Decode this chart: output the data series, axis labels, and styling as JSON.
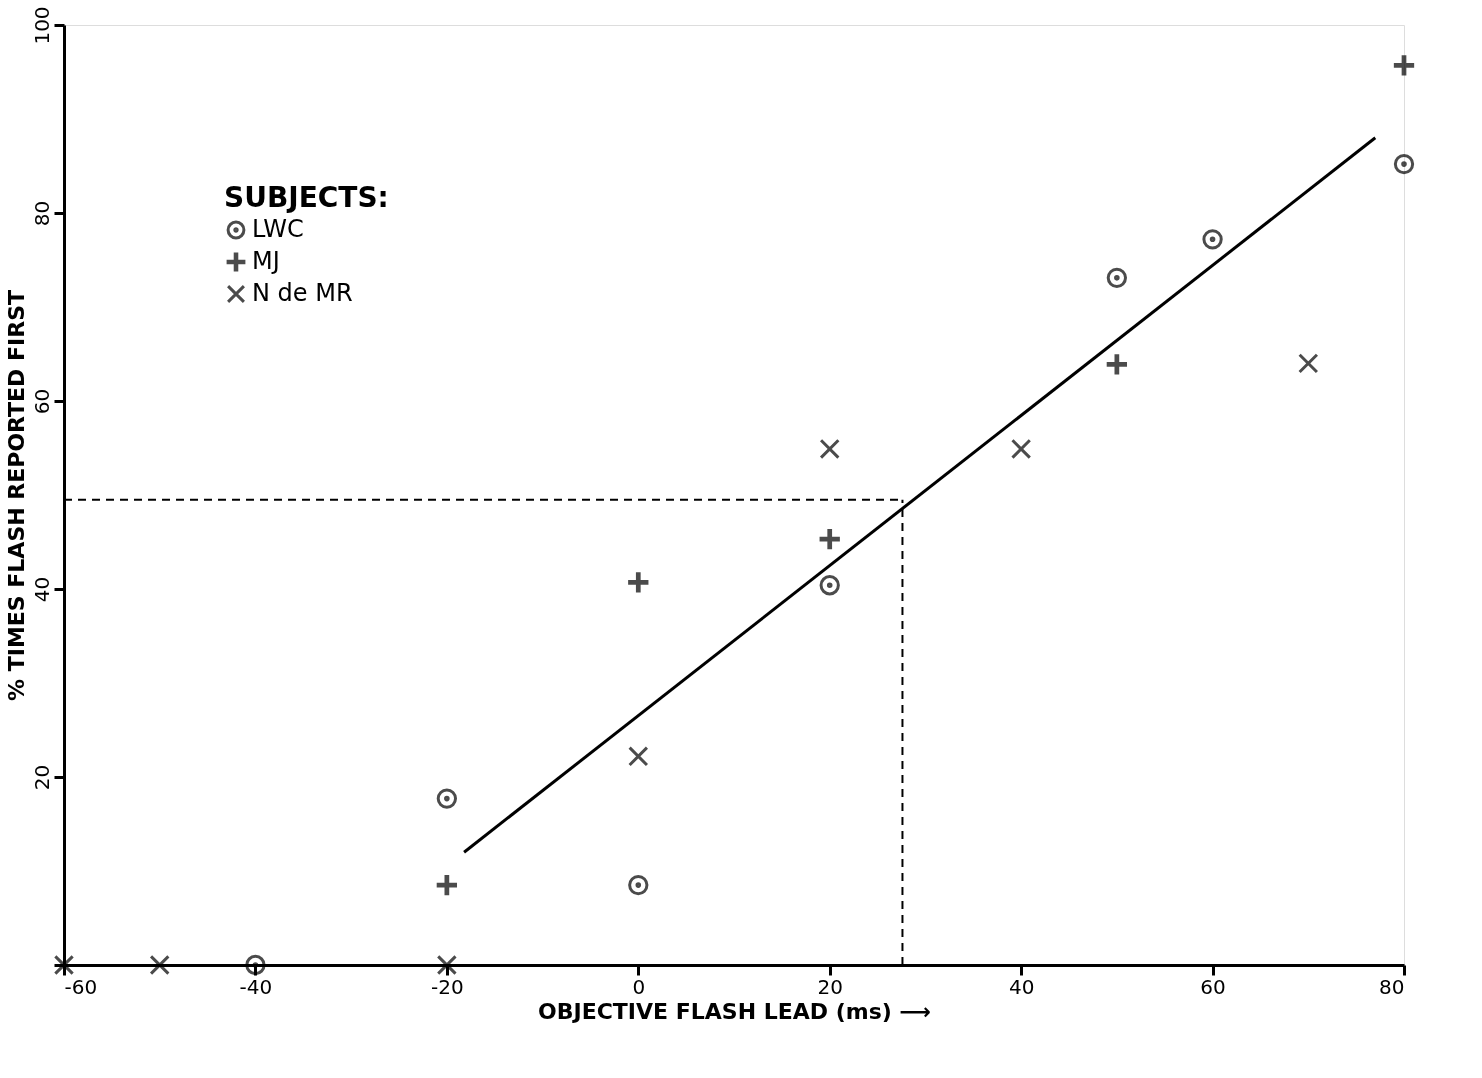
{
  "chart_data": {
    "type": "scatter",
    "xlabel": "OBJECTIVE FLASH LEAD (ms) ⟶",
    "ylabel": "% TIMES FLASH REPORTED FIRST",
    "legend_title": "SUBJECTS:",
    "legend": "top left",
    "grid": false,
    "xlim": [
      -60,
      80
    ],
    "xticks": [
      -60,
      -40,
      -20,
      0,
      20,
      40,
      60,
      80
    ],
    "ylim": [
      0,
      100
    ],
    "yticks": [
      {
        "value": 0,
        "label": null
      },
      20,
      40,
      60,
      80,
      100
    ],
    "series": [
      {
        "name": "LWC",
        "color": "#000000",
        "marker": "circle",
        "x": [
          -40,
          -20,
          0,
          20,
          50,
          60,
          80
        ],
        "values": [
          0,
          17.7,
          8.5,
          40.4,
          73.1,
          77.2,
          85.2
        ]
      },
      {
        "name": "MJ",
        "color": "#000000",
        "marker": "cross",
        "x": [
          -20,
          0,
          20,
          50,
          80
        ],
        "values": [
          8.5,
          40.7,
          45.3,
          63.9,
          95.7
        ]
      },
      {
        "name": "N de MR",
        "color": "#000000",
        "marker": "x",
        "x": [
          -60,
          -50,
          -20,
          0,
          20,
          40,
          70
        ],
        "values": [
          0,
          0,
          0,
          22.2,
          54.9,
          54.9,
          64.0
        ]
      },
      {
        "type": "line",
        "color": "#000000",
        "line_style": "solid",
        "marker": "none",
        "x": [
          -18.2,
          77.0
        ],
        "values": [
          12.0,
          88.0
        ]
      }
    ],
    "ref_lines": [
      {
        "axis": "y",
        "value": 49.5,
        "line_style": "dashed",
        "color": "#000000"
      },
      {
        "axis": "x",
        "value": 27.6,
        "line_style": "dashed",
        "color": "#000000"
      }
    ]
  }
}
